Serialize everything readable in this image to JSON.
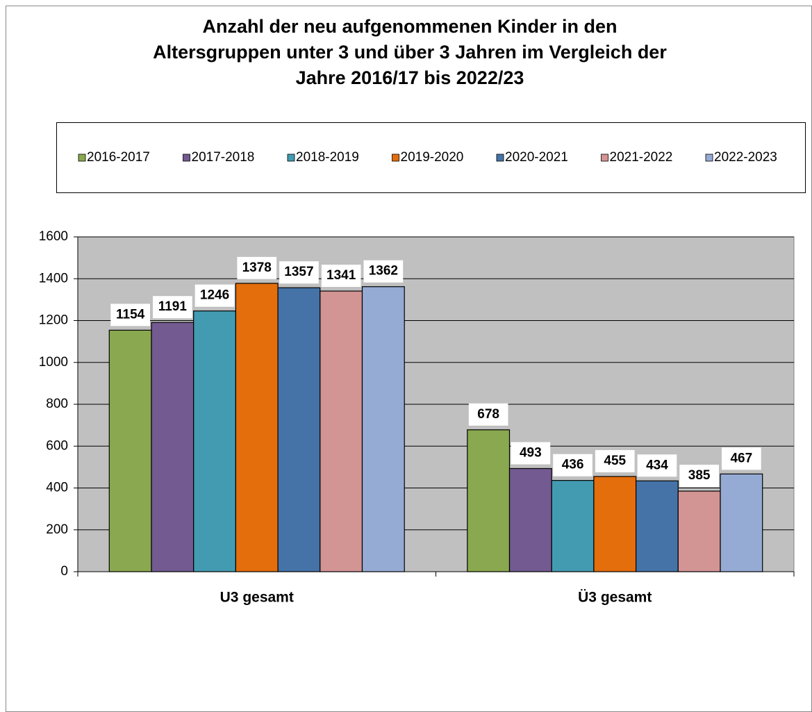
{
  "chart_data": {
    "type": "bar",
    "title": [
      "Anzahl der neu aufgenommenen Kinder in den",
      "Altersgruppen unter 3 und über 3 Jahren im Vergleich der",
      "Jahre 2016/17 bis 2022/23"
    ],
    "categories": [
      "U3 gesamt",
      "Ü3 gesamt"
    ],
    "series": [
      {
        "name": "2016-2017",
        "color": "#8aa84f",
        "values": [
          1154,
          678
        ]
      },
      {
        "name": "2017-2018",
        "color": "#735a91",
        "values": [
          1191,
          493
        ]
      },
      {
        "name": "2018-2019",
        "color": "#439bb1",
        "values": [
          1246,
          436
        ]
      },
      {
        "name": "2019-2020",
        "color": "#e46d0c",
        "values": [
          1378,
          455
        ]
      },
      {
        "name": "2020-2021",
        "color": "#4573a7",
        "values": [
          1357,
          434
        ]
      },
      {
        "name": "2021-2022",
        "color": "#d39494",
        "values": [
          1341,
          385
        ]
      },
      {
        "name": "2022-2023",
        "color": "#95abd4",
        "values": [
          1362,
          467
        ]
      }
    ],
    "ylim": [
      0,
      1600
    ],
    "yticks": [
      0,
      200,
      400,
      600,
      800,
      1000,
      1200,
      1400,
      1600
    ],
    "grid": true,
    "legend": "top"
  }
}
